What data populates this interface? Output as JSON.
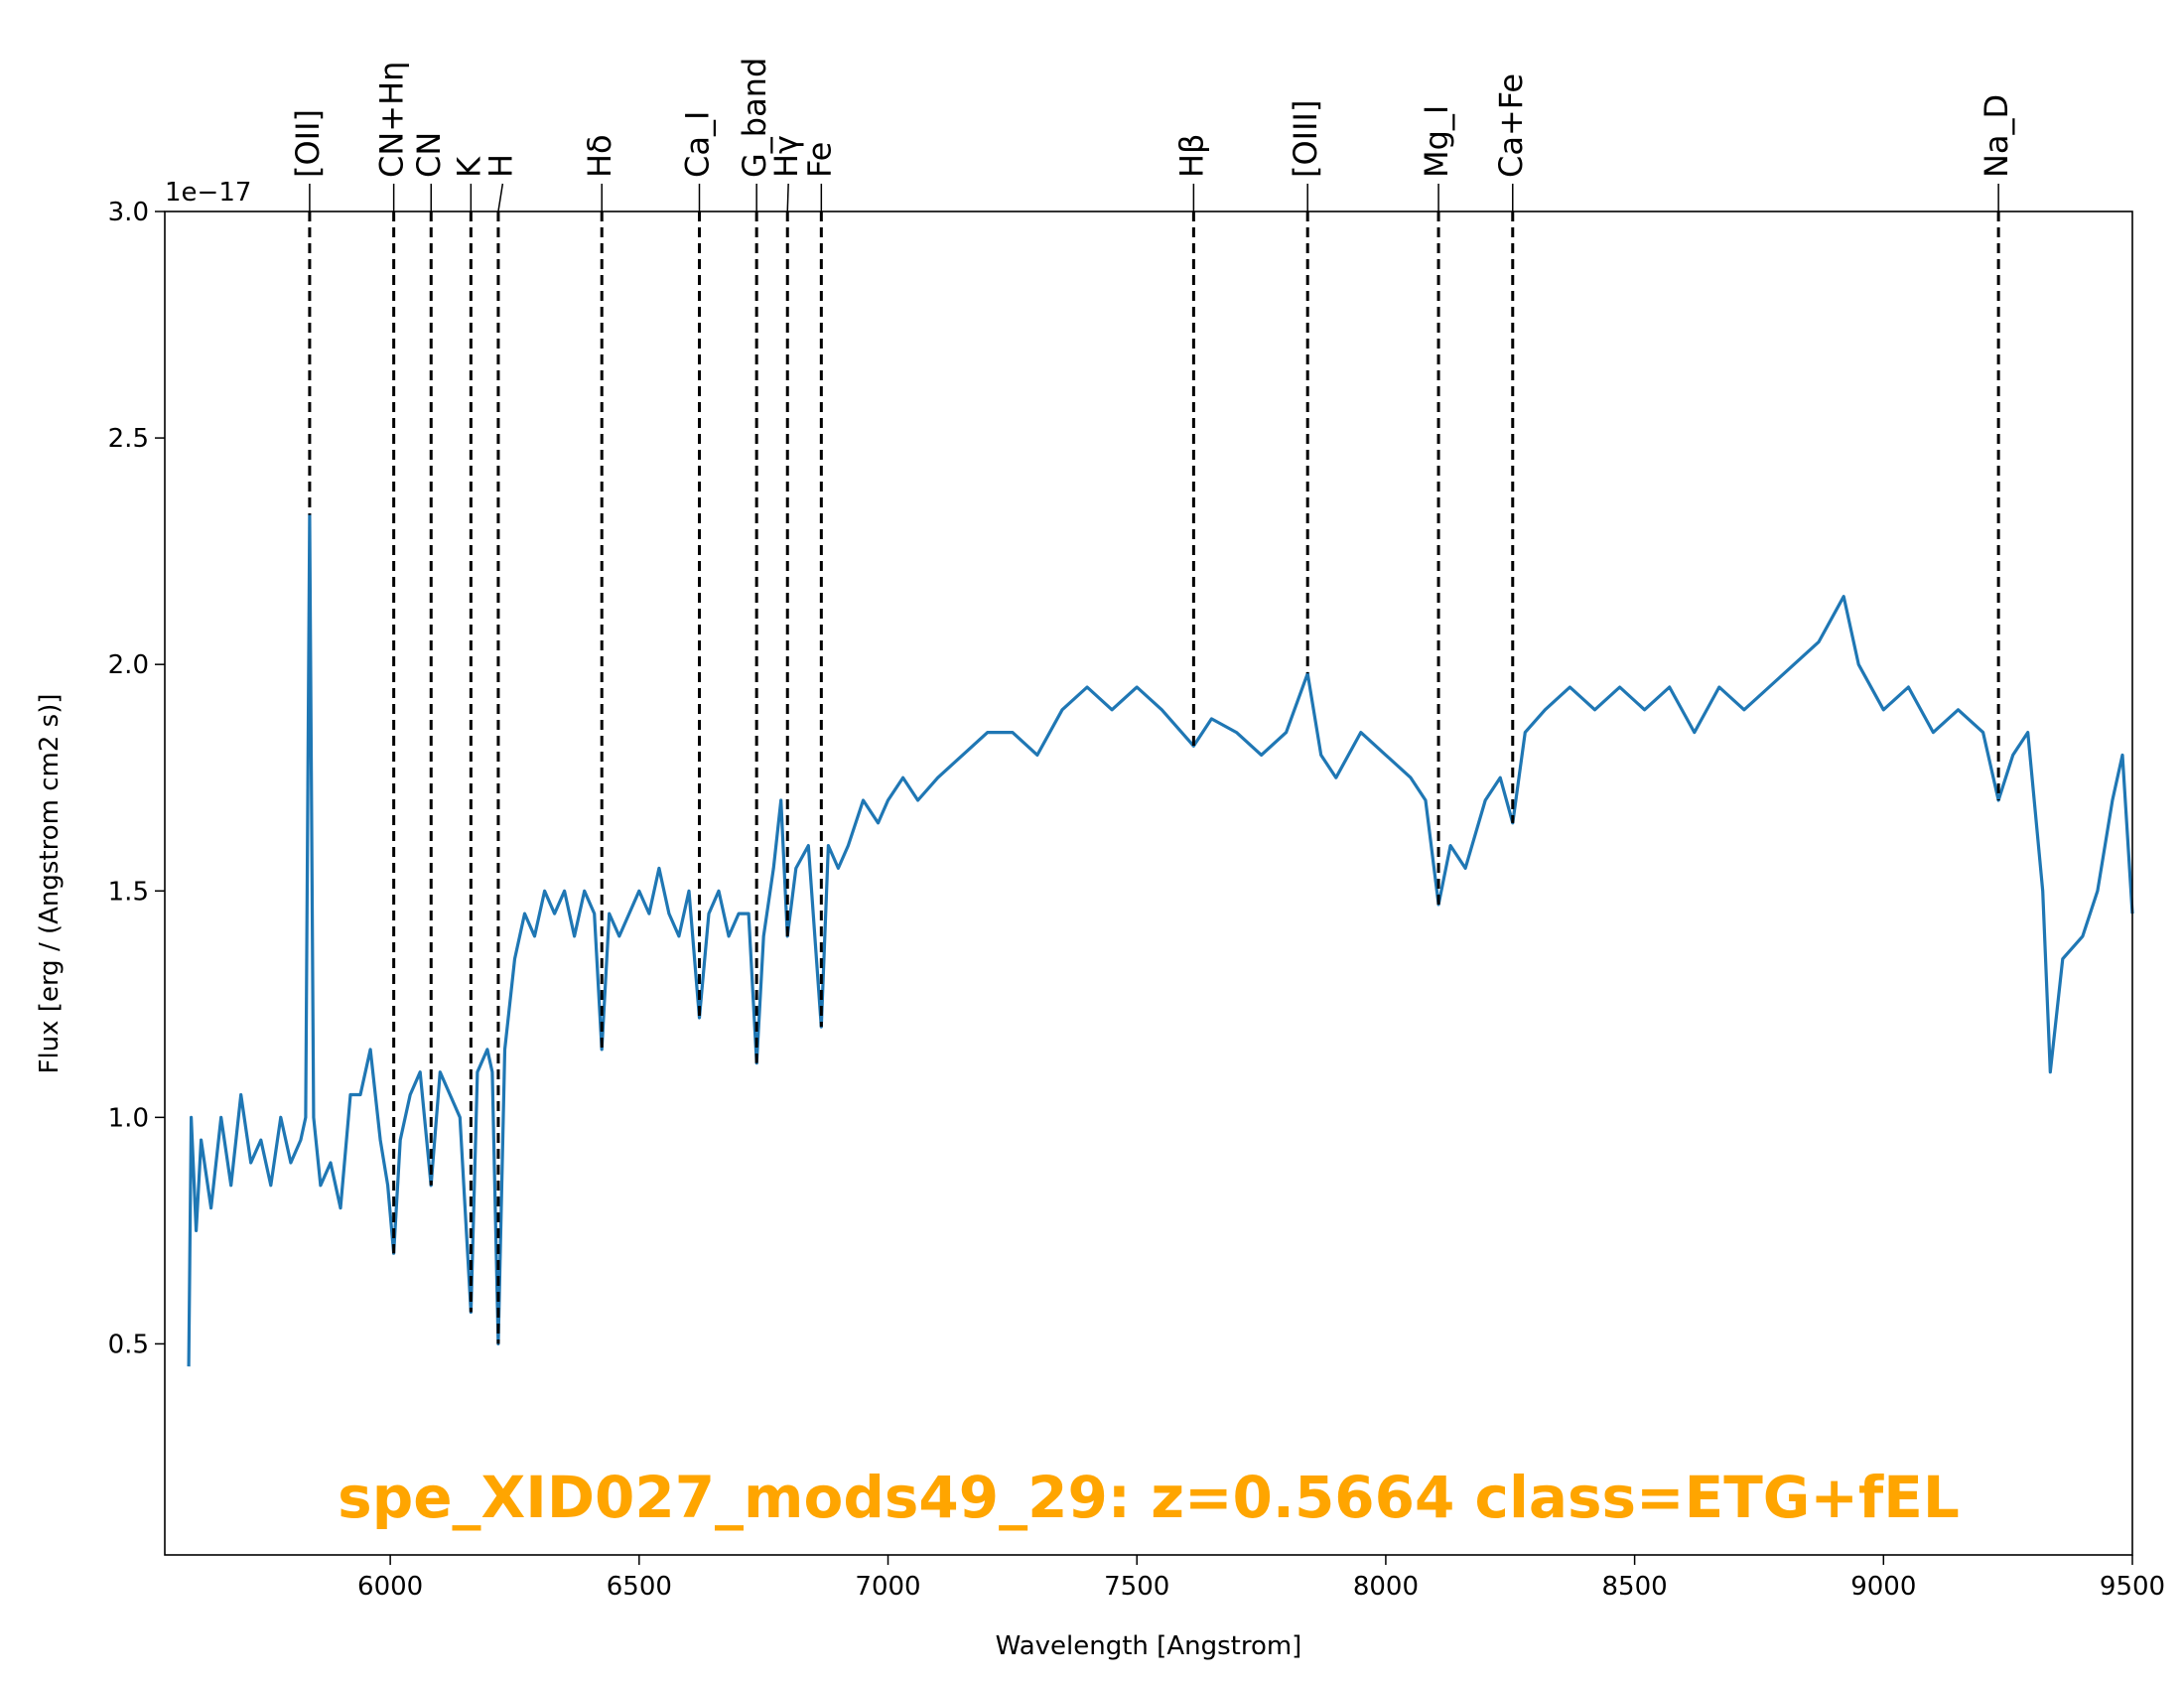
{
  "chart_data": {
    "type": "line",
    "title": "spe_XID027_mods49_29: z=0.5664 class=ETG+fEL",
    "xlabel": "Wavelength [Angstrom]",
    "ylabel": "Flux [erg / (Angstrom cm2 s)]",
    "y_offset_label": "1e−17",
    "xlim": [
      5547,
      9500
    ],
    "ylim": [
      0.034,
      3.0
    ],
    "xticks": [
      6000,
      6500,
      7000,
      7500,
      8000,
      8500,
      9000,
      9500
    ],
    "yticks": [
      0.5,
      {
        "value": 1.0,
        "label": "1.0"
      },
      1.5,
      {
        "value": 2.0,
        "label": "2.0"
      },
      2.5,
      {
        "value": 3.0,
        "label": "3.0"
      }
    ],
    "title_color": "#ffa500",
    "series": [
      {
        "color": "#1f77b4",
        "x": [
          5595,
          5600,
          5610,
          5620,
          5640,
          5660,
          5680,
          5700,
          5720,
          5740,
          5760,
          5780,
          5800,
          5820,
          5830,
          5838,
          5846,
          5860,
          5880,
          5900,
          5920,
          5940,
          5960,
          5980,
          5995,
          6007,
          6020,
          6040,
          6060,
          6082,
          6100,
          6120,
          6140,
          6162,
          6175,
          6195,
          6205,
          6217,
          6230,
          6250,
          6270,
          6290,
          6310,
          6330,
          6350,
          6370,
          6390,
          6410,
          6425,
          6440,
          6460,
          6480,
          6500,
          6520,
          6540,
          6560,
          6580,
          6600,
          6621,
          6640,
          6660,
          6680,
          6700,
          6720,
          6736,
          6750,
          6770,
          6785,
          6798,
          6815,
          6840,
          6866,
          6880,
          6900,
          6920,
          6950,
          6980,
          7000,
          7030,
          7060,
          7100,
          7150,
          7200,
          7250,
          7300,
          7350,
          7400,
          7450,
          7500,
          7550,
          7614,
          7650,
          7700,
          7750,
          7800,
          7843,
          7870,
          7900,
          7950,
          8000,
          8050,
          8080,
          8106,
          8130,
          8160,
          8200,
          8230,
          8255,
          8280,
          8320,
          8370,
          8420,
          8470,
          8520,
          8570,
          8620,
          8670,
          8720,
          8770,
          8820,
          8870,
          8920,
          8950,
          9000,
          9050,
          9100,
          9150,
          9200,
          9231,
          9260,
          9290,
          9320,
          9335,
          9360,
          9400,
          9430,
          9460,
          9480,
          9500
        ],
        "values": [
          0.45,
          1.0,
          0.75,
          0.95,
          0.8,
          1.0,
          0.85,
          1.05,
          0.9,
          0.95,
          0.85,
          1.0,
          0.9,
          0.95,
          1.0,
          2.33,
          1.0,
          0.85,
          0.9,
          0.8,
          1.05,
          1.05,
          1.15,
          0.95,
          0.85,
          0.7,
          0.95,
          1.05,
          1.1,
          0.85,
          1.1,
          1.05,
          1.0,
          0.57,
          1.1,
          1.15,
          1.1,
          0.5,
          1.15,
          1.35,
          1.45,
          1.4,
          1.5,
          1.45,
          1.5,
          1.4,
          1.5,
          1.45,
          1.15,
          1.45,
          1.4,
          1.45,
          1.5,
          1.45,
          1.55,
          1.45,
          1.4,
          1.5,
          1.22,
          1.45,
          1.5,
          1.4,
          1.45,
          1.45,
          1.12,
          1.4,
          1.55,
          1.7,
          1.4,
          1.55,
          1.6,
          1.2,
          1.6,
          1.55,
          1.6,
          1.7,
          1.65,
          1.7,
          1.75,
          1.7,
          1.75,
          1.8,
          1.85,
          1.85,
          1.8,
          1.9,
          1.95,
          1.9,
          1.95,
          1.9,
          1.82,
          1.88,
          1.85,
          1.8,
          1.85,
          1.98,
          1.8,
          1.75,
          1.85,
          1.8,
          1.75,
          1.7,
          1.47,
          1.6,
          1.55,
          1.7,
          1.75,
          1.65,
          1.85,
          1.9,
          1.95,
          1.9,
          1.95,
          1.9,
          1.95,
          1.85,
          1.95,
          1.9,
          1.95,
          2.0,
          2.05,
          2.15,
          2.0,
          1.9,
          1.95,
          1.85,
          1.9,
          1.85,
          1.7,
          1.8,
          1.85,
          1.5,
          1.1,
          1.35,
          1.4,
          1.5,
          1.7,
          1.8,
          1.45
        ]
      }
    ],
    "lines": [
      {
        "label": "[OII]",
        "x": 5838
      },
      {
        "label": "CN+Hη",
        "x": 6007
      },
      {
        "label": "CN",
        "x": 6082
      },
      {
        "label": "K",
        "x": 6162
      },
      {
        "label": "H",
        "x": 6217
      },
      {
        "label": "Hδ",
        "x": 6425
      },
      {
        "label": "Ca_I",
        "x": 6621
      },
      {
        "label": "G_band",
        "x": 6736
      },
      {
        "label": "Hγ",
        "x": 6798
      },
      {
        "label": "Fe",
        "x": 6866
      },
      {
        "label": "Hβ",
        "x": 7614
      },
      {
        "label": "[OIII]",
        "x": 7843
      },
      {
        "label": "Mg_I",
        "x": 8106
      },
      {
        "label": "Ca+Fe",
        "x": 8255
      },
      {
        "label": "Na_D",
        "x": 9231
      }
    ]
  }
}
